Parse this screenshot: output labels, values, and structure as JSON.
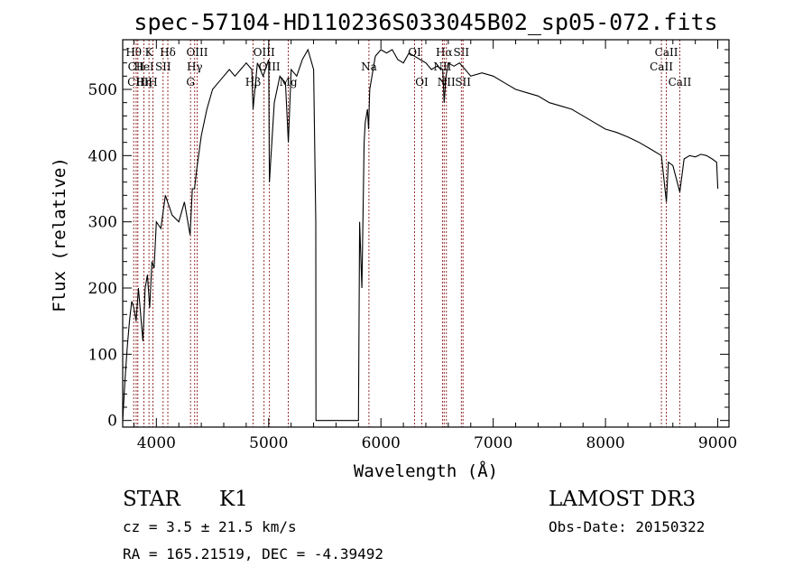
{
  "chart_data": {
    "type": "line",
    "title": "spec-57104-HD110236S033045B02_sp05-072.fits",
    "xlabel": "Wavelength (Å)",
    "ylabel": "Flux (relative)",
    "xlim": [
      3700,
      9100
    ],
    "ylim": [
      -10,
      575
    ],
    "xticks": [
      4000,
      5000,
      6000,
      7000,
      8000,
      9000
    ],
    "yticks": [
      0,
      100,
      200,
      300,
      400,
      500
    ],
    "grid": false,
    "series": [
      {
        "name": "flux",
        "x": [
          3700,
          3720,
          3740,
          3760,
          3780,
          3800,
          3820,
          3840,
          3860,
          3880,
          3900,
          3920,
          3940,
          3960,
          3980,
          4000,
          4040,
          4080,
          4100,
          4140,
          4200,
          4250,
          4300,
          4320,
          4340,
          4360,
          4400,
          4450,
          4500,
          4550,
          4600,
          4650,
          4700,
          4750,
          4800,
          4850,
          4861,
          4900,
          4950,
          5000,
          5007,
          5050,
          5100,
          5150,
          5175,
          5200,
          5250,
          5300,
          5350,
          5400,
          5420,
          5421,
          5800,
          5810,
          5830,
          5850,
          5860,
          5880,
          5890,
          5900,
          5950,
          6000,
          6050,
          6100,
          6150,
          6200,
          6250,
          6300,
          6350,
          6400,
          6450,
          6500,
          6550,
          6563,
          6580,
          6600,
          6650,
          6700,
          6750,
          6800,
          6900,
          7000,
          7100,
          7200,
          7300,
          7400,
          7500,
          7600,
          7700,
          7800,
          7900,
          8000,
          8100,
          8200,
          8300,
          8400,
          8498,
          8542,
          8560,
          8600,
          8662,
          8700,
          8750,
          8800,
          8850,
          8900,
          8950,
          8990,
          9000
        ],
        "y": [
          0,
          60,
          110,
          150,
          180,
          170,
          150,
          200,
          160,
          120,
          200,
          220,
          170,
          240,
          230,
          300,
          290,
          340,
          330,
          310,
          300,
          330,
          280,
          350,
          350,
          380,
          430,
          470,
          500,
          510,
          520,
          530,
          520,
          530,
          540,
          530,
          470,
          540,
          520,
          545,
          360,
          480,
          520,
          510,
          420,
          530,
          520,
          545,
          560,
          530,
          300,
          0,
          0,
          300,
          200,
          420,
          450,
          470,
          440,
          500,
          550,
          560,
          555,
          560,
          545,
          540,
          555,
          550,
          545,
          540,
          530,
          535,
          530,
          480,
          520,
          540,
          535,
          540,
          530,
          520,
          525,
          520,
          510,
          500,
          495,
          490,
          480,
          475,
          470,
          460,
          450,
          440,
          435,
          428,
          420,
          410,
          400,
          330,
          390,
          385,
          345,
          395,
          400,
          398,
          402,
          400,
          395,
          390,
          350
        ]
      }
    ]
  },
  "spectral_lines": [
    {
      "name": "Hθ",
      "wavelength": 3798,
      "row": 1
    },
    {
      "name": "CII",
      "wavelength": 3820,
      "row": 2
    },
    {
      "name": "CIII",
      "wavelength": 3835,
      "row": 3
    },
    {
      "name": "K",
      "wavelength": 3934,
      "row": 1
    },
    {
      "name": "HeI",
      "wavelength": 3889,
      "row": 2
    },
    {
      "name": "Hη",
      "wavelength": 3889,
      "row": 3
    },
    {
      "name": "Hδ",
      "wavelength": 4102,
      "row": 1
    },
    {
      "name": "SII",
      "wavelength": 4060,
      "row": 2
    },
    {
      "name": "H",
      "wavelength": 3969,
      "row": 3
    },
    {
      "name": "OIII",
      "wavelength": 4363,
      "row": 1
    },
    {
      "name": "Hγ",
      "wavelength": 4341,
      "row": 2
    },
    {
      "name": "G",
      "wavelength": 4304,
      "row": 3
    },
    {
      "name": "OIII",
      "wavelength": 4959,
      "row": 1
    },
    {
      "name": "OIII",
      "wavelength": 5007,
      "row": 2
    },
    {
      "name": "Hβ",
      "wavelength": 4861,
      "row": 3
    },
    {
      "name": "Mg",
      "wavelength": 5175,
      "row": 3
    },
    {
      "name": "Na",
      "wavelength": 5893,
      "row": 2
    },
    {
      "name": "OI",
      "wavelength": 6300,
      "row": 1
    },
    {
      "name": "OI",
      "wavelength": 6364,
      "row": 3
    },
    {
      "name": "Hα",
      "wavelength": 6563,
      "row": 1
    },
    {
      "name": "NII",
      "wavelength": 6548,
      "row": 2
    },
    {
      "name": "NII",
      "wavelength": 6583,
      "row": 3
    },
    {
      "name": "SII",
      "wavelength": 6716,
      "row": 1
    },
    {
      "name": "SII",
      "wavelength": 6731,
      "row": 3
    },
    {
      "name": "CaII",
      "wavelength": 8542,
      "row": 1
    },
    {
      "name": "CaII",
      "wavelength": 8498,
      "row": 2
    },
    {
      "name": "CaII",
      "wavelength": 8662,
      "row": 3
    }
  ],
  "info": {
    "class_label": "STAR",
    "subclass": "K1",
    "survey": "LAMOST DR3",
    "cz": "cz = 3.5 ± 21.5 km/s",
    "obs_date": "Obs-Date: 20150322",
    "coords": "RA = 165.21519, DEC =  -4.39492"
  },
  "colors": {
    "line_marker": "#8b1a1a",
    "spectrum": "#000000"
  }
}
